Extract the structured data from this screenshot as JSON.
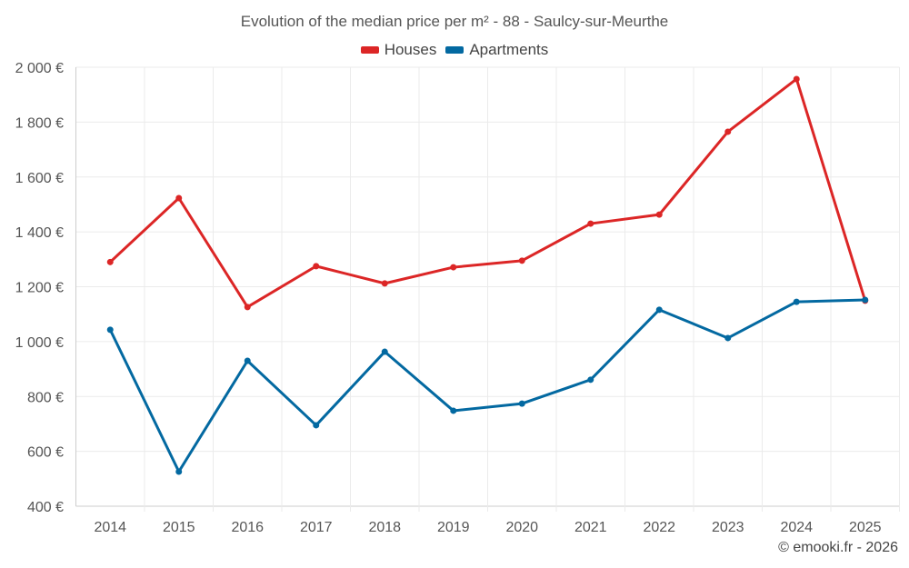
{
  "chart_data": {
    "type": "line",
    "title": "Evolution of the median price per m² - 88 - Saulcy-sur-Meurthe",
    "categories": [
      "2014",
      "2015",
      "2016",
      "2017",
      "2018",
      "2019",
      "2020",
      "2021",
      "2022",
      "2023",
      "2024",
      "2025"
    ],
    "series": [
      {
        "name": "Houses",
        "color": "#dc2626",
        "values": [
          1290,
          1523,
          1126,
          1275,
          1212,
          1271,
          1295,
          1430,
          1463,
          1765,
          1957,
          1149
        ]
      },
      {
        "name": "Apartments",
        "color": "#0369a1",
        "values": [
          1043,
          526,
          930,
          695,
          963,
          748,
          774,
          861,
          1116,
          1013,
          1145,
          1152
        ]
      }
    ],
    "ylim": [
      400,
      2000
    ],
    "yticks": [
      400,
      600,
      800,
      1000,
      1200,
      1400,
      1600,
      1800,
      2000
    ],
    "ytick_labels": [
      "400 €",
      "600 €",
      "800 €",
      "1 000 €",
      "1 200 €",
      "1 400 €",
      "1 600 €",
      "1 800 €",
      "2 000 €"
    ],
    "grid": true,
    "legend": "top-center",
    "xlabel": "",
    "ylabel": ""
  },
  "credit": "© emooki.fr - 2026"
}
